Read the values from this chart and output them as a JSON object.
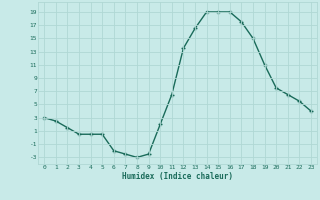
{
  "x": [
    0,
    1,
    2,
    3,
    4,
    5,
    6,
    7,
    8,
    9,
    10,
    11,
    12,
    13,
    14,
    15,
    16,
    17,
    18,
    19,
    20,
    21,
    22,
    23
  ],
  "y": [
    3,
    2.5,
    1.5,
    0.5,
    0.5,
    0.5,
    -2,
    -2.5,
    -3,
    -2.5,
    2,
    6.5,
    13.5,
    16.5,
    19,
    19,
    19,
    17.5,
    15,
    11,
    7.5,
    6.5,
    5.5,
    4
  ],
  "line_color": "#1a6b5a",
  "marker": "+",
  "background_color": "#c8eae8",
  "grid_color": "#b0d8d4",
  "xlabel": "Humidex (Indice chaleur)",
  "yticks": [
    -3,
    -1,
    1,
    3,
    5,
    7,
    9,
    11,
    13,
    15,
    17,
    19
  ],
  "xticks": [
    0,
    1,
    2,
    3,
    4,
    5,
    6,
    7,
    8,
    9,
    10,
    11,
    12,
    13,
    14,
    15,
    16,
    17,
    18,
    19,
    20,
    21,
    22,
    23
  ],
  "ylim": [
    -4,
    20.5
  ],
  "xlim": [
    -0.5,
    23.5
  ],
  "linewidth": 1.0,
  "markersize": 3.5,
  "markeredgewidth": 1.0
}
